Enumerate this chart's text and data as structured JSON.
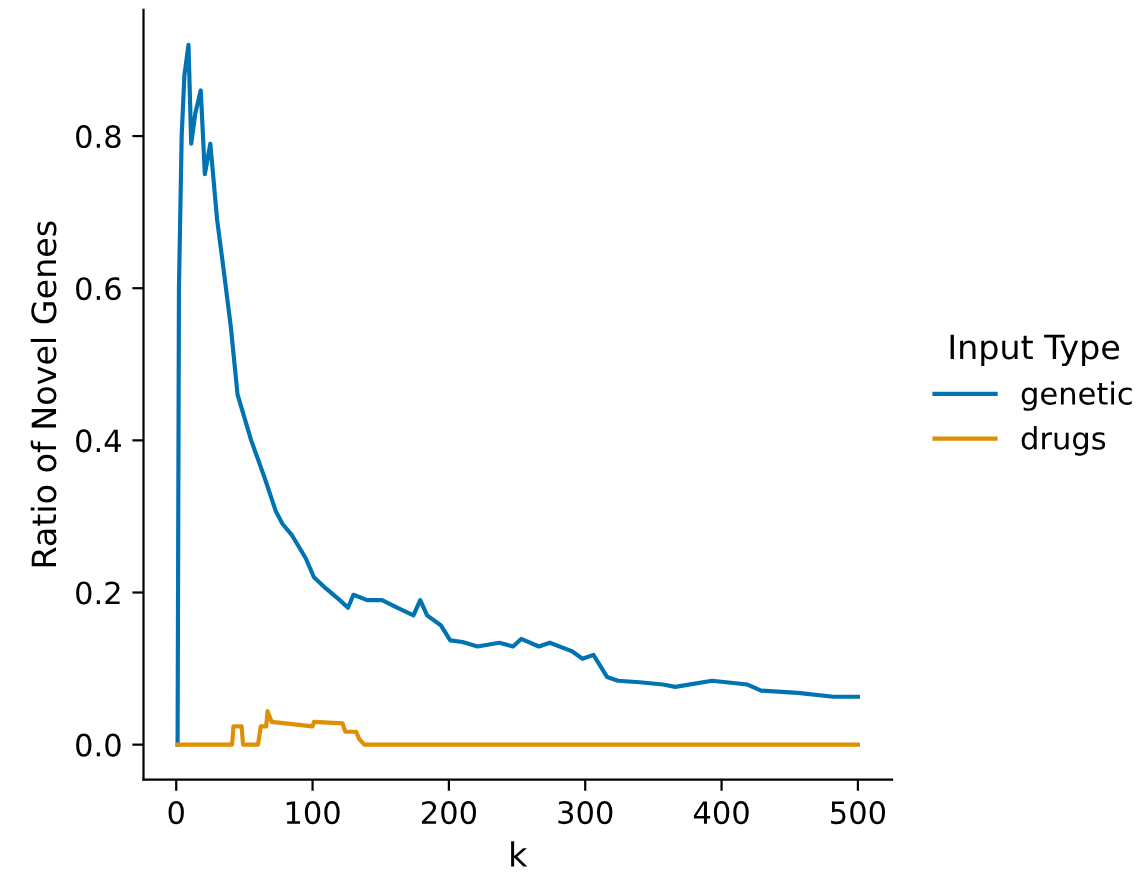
{
  "chart_data": {
    "type": "line",
    "xlabel": "k",
    "ylabel": "Ratio of Novel Genes",
    "legend_title": "Input Type",
    "legend": "right",
    "grid": false,
    "xlim": [
      -24,
      525
    ],
    "ylim": [
      -0.046,
      0.966
    ],
    "xticks": [
      0,
      100,
      200,
      300,
      400,
      500
    ],
    "yticks": [
      {
        "value": 0,
        "label": "0.0"
      },
      0.2,
      0.4,
      0.6,
      0.8
    ],
    "series": [
      {
        "name": "genetic",
        "color": "#0173b2",
        "x": [
          1,
          2,
          4,
          6,
          9,
          11,
          14,
          18,
          21,
          25,
          30,
          34,
          40,
          45,
          55,
          65,
          73,
          78,
          85,
          95,
          101,
          110,
          120,
          126,
          130,
          140,
          151,
          162,
          174,
          179,
          184,
          194,
          201,
          210,
          221,
          237,
          247,
          253,
          266,
          274,
          290,
          298,
          306,
          316,
          324,
          340,
          357,
          366,
          393,
          419,
          429,
          456,
          482,
          496,
          500
        ],
        "values": [
          0,
          0.6,
          0.8,
          0.88,
          0.92,
          0.79,
          0.83,
          0.86,
          0.75,
          0.79,
          0.69,
          0.635,
          0.55,
          0.46,
          0.4,
          0.35,
          0.307,
          0.29,
          0.275,
          0.245,
          0.22,
          0.205,
          0.19,
          0.18,
          0.197,
          0.19,
          0.19,
          0.18,
          0.17,
          0.19,
          0.17,
          0.157,
          0.137,
          0.135,
          0.129,
          0.134,
          0.129,
          0.139,
          0.129,
          0.134,
          0.123,
          0.113,
          0.118,
          0.089,
          0.084,
          0.082,
          0.079,
          0.076,
          0.084,
          0.079,
          0.071,
          0.068,
          0.063,
          0.063,
          0.063
        ]
      },
      {
        "name": "drugs",
        "color": "#de8f05",
        "x": [
          1,
          41,
          42,
          48,
          49,
          60,
          62,
          66,
          67,
          70,
          100,
          101,
          122,
          124,
          132,
          134,
          138,
          500
        ],
        "values": [
          0,
          0,
          0.024,
          0.024,
          0,
          0,
          0.024,
          0.024,
          0.044,
          0.03,
          0.024,
          0.03,
          0.028,
          0.017,
          0.017,
          0.008,
          0,
          0
        ]
      }
    ]
  }
}
